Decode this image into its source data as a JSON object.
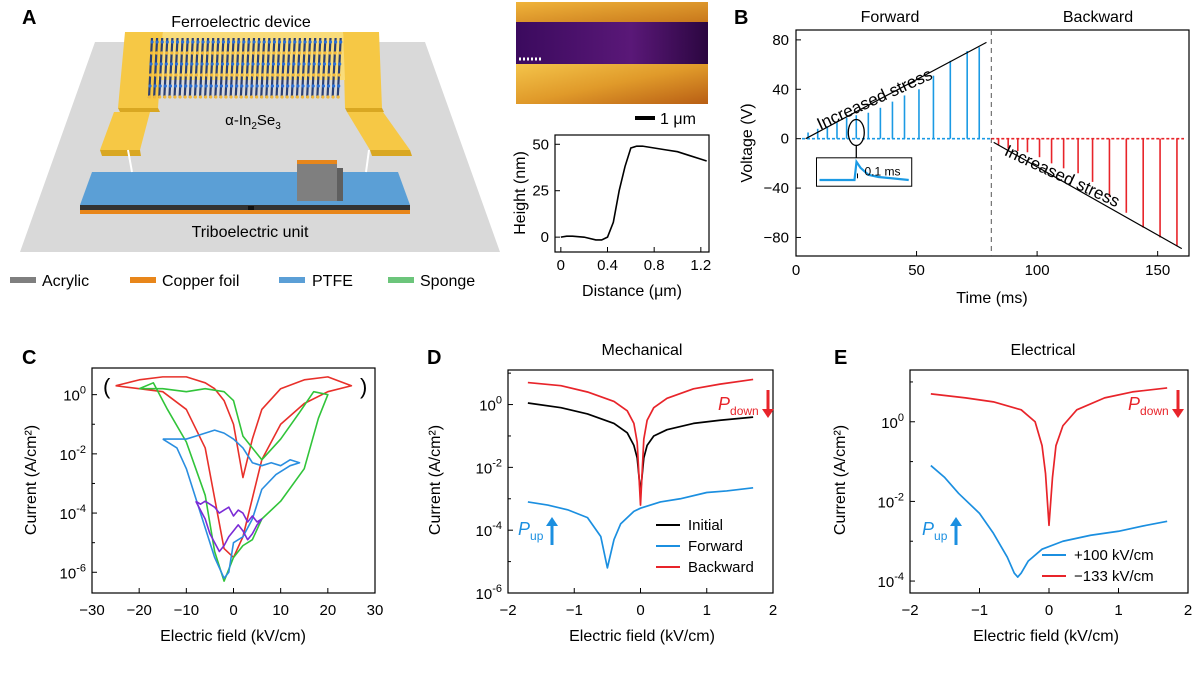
{
  "panelA": {
    "letter": "A",
    "device_title": "Ferroelectric device",
    "material": {
      "prefix": "α-In",
      "sub1": "2",
      "mid": "Se",
      "sub2": "3"
    },
    "triboelectric_label": "Triboelectric unit",
    "legend": [
      {
        "label": "Acrylic",
        "color": "#7f7f7f"
      },
      {
        "label": "Copper foil",
        "color": "#e8861a"
      },
      {
        "label": "PTFE",
        "color": "#5b9fd6"
      },
      {
        "label": "Sponge",
        "color": "#6cc57b"
      }
    ],
    "scale_bar": "1 μm",
    "colors": {
      "gold": "#f6c845",
      "gold_light": "#f9dc7a",
      "gold_dark": "#d9a722",
      "platform": "#d9d9d9",
      "ptfe": "#5b9fd6"
    }
  },
  "afm_profile": {
    "type": "line",
    "xlabel": "Distance (μm)",
    "ylabel": "Height (nm)",
    "xlim": [
      -0.05,
      1.27
    ],
    "ylim": [
      -8,
      55
    ],
    "xticks": [
      0,
      0.4,
      0.8,
      1.2
    ],
    "xtick_labels": [
      "0",
      "0.4",
      "0.8",
      "1.2"
    ],
    "yticks": [
      0,
      25,
      50
    ],
    "ytick_labels": [
      "0",
      "25",
      "50"
    ],
    "x": [
      0,
      0.05,
      0.1,
      0.2,
      0.3,
      0.35,
      0.4,
      0.45,
      0.5,
      0.55,
      0.6,
      0.65,
      0.7,
      0.8,
      0.9,
      1.0,
      1.1,
      1.2,
      1.25
    ],
    "y": [
      0,
      0.5,
      0.5,
      0,
      -1.5,
      -1.5,
      0,
      8,
      25,
      38,
      48,
      49,
      49,
      48,
      47,
      46,
      44,
      42,
      41
    ]
  },
  "panelB": {
    "letter": "B",
    "type": "line",
    "title_forward": "Forward",
    "title_backward": "Backward",
    "xlabel": "Time (ms)",
    "ylabel": "Voltage (V)",
    "xlim": [
      0,
      163
    ],
    "ylim": [
      -95,
      88
    ],
    "xticks": [
      0,
      50,
      100,
      150
    ],
    "xtick_labels": [
      "0",
      "50",
      "100",
      "150"
    ],
    "yticks": [
      -80,
      -40,
      0,
      40,
      80
    ],
    "ytick_labels": [
      "−80",
      "−40",
      "0",
      "40",
      "80"
    ],
    "forward_spikes": {
      "t": [
        5,
        9,
        13,
        17,
        21,
        25,
        30,
        35,
        40,
        45,
        51,
        57,
        64,
        71,
        76
      ],
      "v": [
        5,
        8,
        10,
        13,
        17,
        19,
        21,
        25,
        30,
        35,
        40,
        51,
        63,
        71,
        74
      ]
    },
    "backward_spikes": {
      "t": [
        84,
        88,
        92,
        96,
        101,
        106,
        111,
        117,
        123,
        130,
        137,
        144,
        151,
        158
      ],
      "v": [
        -5,
        -8,
        -10,
        -11,
        -15,
        -20,
        -24,
        -28,
        -35,
        -47,
        -60,
        -72,
        -80,
        -87
      ]
    },
    "divider_t": 81,
    "annotation_forward": "Increased  stress",
    "annotation_backward": "Increased stress",
    "inset_label": "0.1 ms",
    "colors": {
      "forward": "#1b9ae4",
      "backward": "#e8242a"
    }
  },
  "panelC": {
    "letter": "C",
    "type": "line",
    "xlabel": "Electric field (kV/cm)",
    "ylabel": "Current (A/cm²)",
    "xlim": [
      -30,
      30
    ],
    "ylim_log10": [
      -6.7,
      0.9
    ],
    "xticks": [
      -30,
      -20,
      -10,
      0,
      10,
      20,
      30
    ],
    "xtick_labels": [
      "−30",
      "−20",
      "−10",
      "0",
      "10",
      "20",
      "30"
    ],
    "yticks_log10": [
      0,
      -2,
      -4,
      -6
    ],
    "ytick_base": "10",
    "ytick_exponents": [
      "0",
      "-2",
      "-4",
      "-6"
    ],
    "series": [
      {
        "name": "loop-red",
        "color": "#e8302a",
        "x": [
          -25,
          -20,
          -15,
          -10,
          -6,
          -4,
          -2,
          0,
          2,
          4,
          6,
          10,
          15,
          20,
          25,
          20,
          15,
          10,
          6,
          4,
          2,
          0,
          -2,
          -4,
          -6,
          -10,
          -15,
          -20,
          -25
        ],
        "y": [
          0.3,
          0.2,
          0.1,
          -0.5,
          -1.8,
          -3.5,
          -5.2,
          -5.5,
          -4.8,
          -3.5,
          -2.2,
          -1.0,
          -0.3,
          0.1,
          0.3,
          0.6,
          0.5,
          0.2,
          -0.5,
          -1.5,
          -2.8,
          -1.0,
          -0.2,
          0.2,
          0.4,
          0.6,
          0.6,
          0.5,
          0.3
        ]
      },
      {
        "name": "loop-green",
        "color": "#31c43a",
        "x": [
          -20,
          -17,
          -14,
          -10,
          -6,
          -4,
          -2,
          0,
          2,
          4,
          6,
          10,
          15,
          18,
          20,
          17,
          14,
          10,
          6,
          2,
          0,
          -2,
          -6,
          -10,
          -15,
          -20
        ],
        "y": [
          0.2,
          0.4,
          -0.5,
          -1.6,
          -3.4,
          -5.3,
          -6.3,
          -5.5,
          -5.1,
          -4.9,
          -4.2,
          -3.6,
          -2.5,
          -0.8,
          0.0,
          0.1,
          -0.6,
          -1.5,
          -2.2,
          -1.4,
          -0.2,
          0.1,
          0.2,
          0.1,
          0.2,
          0.2
        ]
      },
      {
        "name": "loop-blue",
        "color": "#2a8ee0",
        "x": [
          -15,
          -12,
          -10,
          -8,
          -6,
          -4,
          -2,
          -1,
          0,
          2,
          4,
          6,
          9,
          12,
          14,
          12,
          10,
          8,
          6,
          4,
          2,
          0,
          -2,
          -4,
          -6,
          -8,
          -10,
          -12,
          -15
        ],
        "y": [
          -1.5,
          -1.8,
          -2.5,
          -3.5,
          -4.5,
          -5.5,
          -6.2,
          -6.0,
          -5.0,
          -4.8,
          -4.2,
          -3.2,
          -2.7,
          -2.4,
          -2.3,
          -2.2,
          -2.4,
          -2.3,
          -2.4,
          -2.3,
          -1.8,
          -1.5,
          -1.3,
          -1.2,
          -1.3,
          -1.4,
          -1.5,
          -1.5,
          -1.5
        ]
      },
      {
        "name": "loop-purple",
        "color": "#7b2bd6",
        "x": [
          -8,
          -7,
          -6,
          -5,
          -4,
          -3,
          -2,
          -1,
          0,
          1,
          2,
          3,
          4,
          5,
          6,
          5,
          4,
          3,
          2,
          1,
          0,
          -1,
          -2,
          -3,
          -4,
          -5,
          -6,
          -7,
          -8
        ],
        "y": [
          -3.6,
          -3.9,
          -4.2,
          -4.7,
          -5.0,
          -5.3,
          -5.1,
          -4.8,
          -4.6,
          -4.4,
          -4.6,
          -4.9,
          -4.7,
          -4.4,
          -4.2,
          -4.3,
          -4.1,
          -4.3,
          -4.0,
          -3.9,
          -4.1,
          -3.8,
          -3.9,
          -4.0,
          -3.8,
          -3.7,
          -3.6,
          -3.7,
          -3.6
        ]
      }
    ],
    "bracket_left": "(",
    "bracket_right": ")"
  },
  "panelD": {
    "letter": "D",
    "type": "line",
    "title": "Mechanical",
    "xlabel": "Electric field (kV/cm)",
    "ylabel": "Current (A/cm²)",
    "xlim": [
      -2,
      2
    ],
    "ylim_log10": [
      -6,
      1.1
    ],
    "xticks": [
      -2,
      -1,
      0,
      1,
      2
    ],
    "xtick_labels": [
      "−2",
      "−1",
      "0",
      "1",
      "2"
    ],
    "yticks_log10": [
      0,
      -2,
      -4,
      -6
    ],
    "ytick_base": "10",
    "ytick_exponents": [
      "0",
      "-2",
      "-4",
      "-6"
    ],
    "series": [
      {
        "name": "Initial",
        "color": "#000000",
        "x": [
          -1.7,
          -1.2,
          -0.8,
          -0.4,
          -0.2,
          -0.1,
          -0.05,
          0,
          0.05,
          0.1,
          0.2,
          0.4,
          0.8,
          1.2,
          1.7
        ],
        "y": [
          0.05,
          -0.1,
          -0.3,
          -0.6,
          -0.9,
          -1.3,
          -1.7,
          -2.8,
          -1.7,
          -1.3,
          -1.0,
          -0.8,
          -0.6,
          -0.5,
          -0.4
        ]
      },
      {
        "name": "Forward",
        "color": "#1b8fe0",
        "x": [
          -1.7,
          -1.4,
          -1.1,
          -0.8,
          -0.6,
          -0.5,
          -0.4,
          -0.3,
          -0.2,
          -0.1,
          0,
          0.3,
          0.6,
          1.0,
          1.3,
          1.7
        ],
        "y": [
          -3.1,
          -3.2,
          -3.35,
          -3.6,
          -4.2,
          -5.2,
          -4.3,
          -3.8,
          -3.6,
          -3.4,
          -3.3,
          -3.1,
          -3.0,
          -2.8,
          -2.75,
          -2.65
        ]
      },
      {
        "name": "Backward",
        "color": "#e8242a",
        "x": [
          -1.7,
          -1.2,
          -0.8,
          -0.4,
          -0.2,
          -0.1,
          -0.05,
          0,
          0.05,
          0.1,
          0.2,
          0.4,
          0.8,
          1.2,
          1.7
        ],
        "y": [
          0.7,
          0.6,
          0.4,
          0.1,
          -0.2,
          -0.6,
          -1.2,
          -3.2,
          -1.1,
          -0.5,
          -0.1,
          0.2,
          0.5,
          0.65,
          0.8
        ]
      }
    ],
    "legend": [
      "Initial",
      "Forward",
      "Backward"
    ],
    "p_down": {
      "P": "P",
      "sub": "down"
    },
    "p_up": {
      "P": "P",
      "sub": "up"
    }
  },
  "panelE": {
    "letter": "E",
    "type": "line",
    "title": "Electrical",
    "xlabel": "Electric field (kV/cm)",
    "ylabel": "Current (A/cm²)",
    "xlim": [
      -2,
      2
    ],
    "ylim_log10": [
      -4.3,
      1.3
    ],
    "xticks": [
      -2,
      -1,
      0,
      1,
      2
    ],
    "xtick_labels": [
      "−2",
      "−1",
      "0",
      "1",
      "2"
    ],
    "yticks_log10": [
      0,
      -2,
      -4
    ],
    "ytick_base": "10",
    "ytick_exponents": [
      "0",
      "-2",
      "-4"
    ],
    "series": [
      {
        "name": "+100 kV/cm",
        "color": "#1b8fe0",
        "x": [
          -1.7,
          -1.5,
          -1.3,
          -1.0,
          -0.8,
          -0.6,
          -0.5,
          -0.45,
          -0.4,
          -0.3,
          -0.1,
          0.2,
          0.6,
          1.0,
          1.4,
          1.7
        ],
        "y": [
          -1.1,
          -1.4,
          -1.8,
          -2.3,
          -2.8,
          -3.4,
          -3.8,
          -3.9,
          -3.8,
          -3.5,
          -3.2,
          -3.0,
          -2.85,
          -2.75,
          -2.6,
          -2.5
        ]
      },
      {
        "name": "−133 kV/cm",
        "color": "#e8242a",
        "x": [
          -1.7,
          -1.2,
          -0.8,
          -0.4,
          -0.2,
          -0.1,
          -0.05,
          0,
          0.05,
          0.1,
          0.2,
          0.4,
          0.8,
          1.2,
          1.7
        ],
        "y": [
          0.7,
          0.6,
          0.5,
          0.3,
          0.0,
          -0.6,
          -1.3,
          -2.6,
          -1.4,
          -0.6,
          -0.1,
          0.3,
          0.6,
          0.75,
          0.85
        ]
      }
    ],
    "legend": [
      "+100 kV/cm",
      "−133 kV/cm"
    ],
    "p_down": {
      "P": "P",
      "sub": "down"
    },
    "p_up": {
      "P": "P",
      "sub": "up"
    }
  }
}
